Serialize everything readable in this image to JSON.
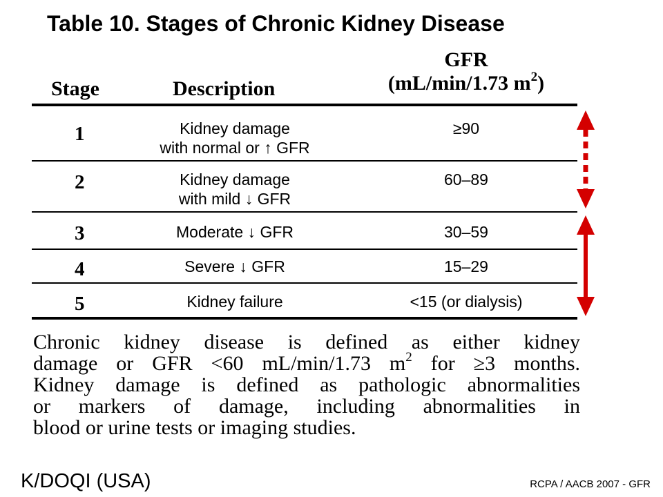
{
  "title": "Table 10. Stages of Chronic Kidney Disease",
  "table": {
    "headers": {
      "stage": "Stage",
      "description": "Description",
      "gfr_line1": "GFR",
      "gfr_line2": "(mL/min/1.73 m",
      "gfr_sup": "2",
      "gfr_close": ")"
    },
    "rows": [
      {
        "stage": "1",
        "description_line1": "Kidney damage",
        "description_line2": "with normal or ↑ GFR",
        "gfr": "≥90"
      },
      {
        "stage": "2",
        "description_line1": "Kidney damage",
        "description_line2": "with mild ↓ GFR",
        "gfr": "60–89"
      },
      {
        "stage": "3",
        "description_line1": "Moderate ↓ GFR",
        "gfr": "30–59"
      },
      {
        "stage": "4",
        "description_line1": "Severe ↓ GFR",
        "gfr": "15–29"
      },
      {
        "stage": "5",
        "description_line1": "Kidney failure",
        "gfr": "<15 (or dialysis)"
      }
    ]
  },
  "paragraph": {
    "line1": "Chronic kidney disease is defined as either kidney",
    "line2_a": "damage or GFR <60 mL/min/1.73 m",
    "line2_sup": "2",
    "line2_b": " for ≥3 months.",
    "line3": "Kidney damage is defined as pathologic abnormalities",
    "line4": "or markers of damage, including abnormalities in",
    "line5": "blood or urine tests or imaging studies."
  },
  "source": "K/DOQI (USA)",
  "credit": "RCPA / AACB 2007 - GFR",
  "colors": {
    "arrow": "#d40000",
    "text": "#000000",
    "background": "#ffffff"
  }
}
